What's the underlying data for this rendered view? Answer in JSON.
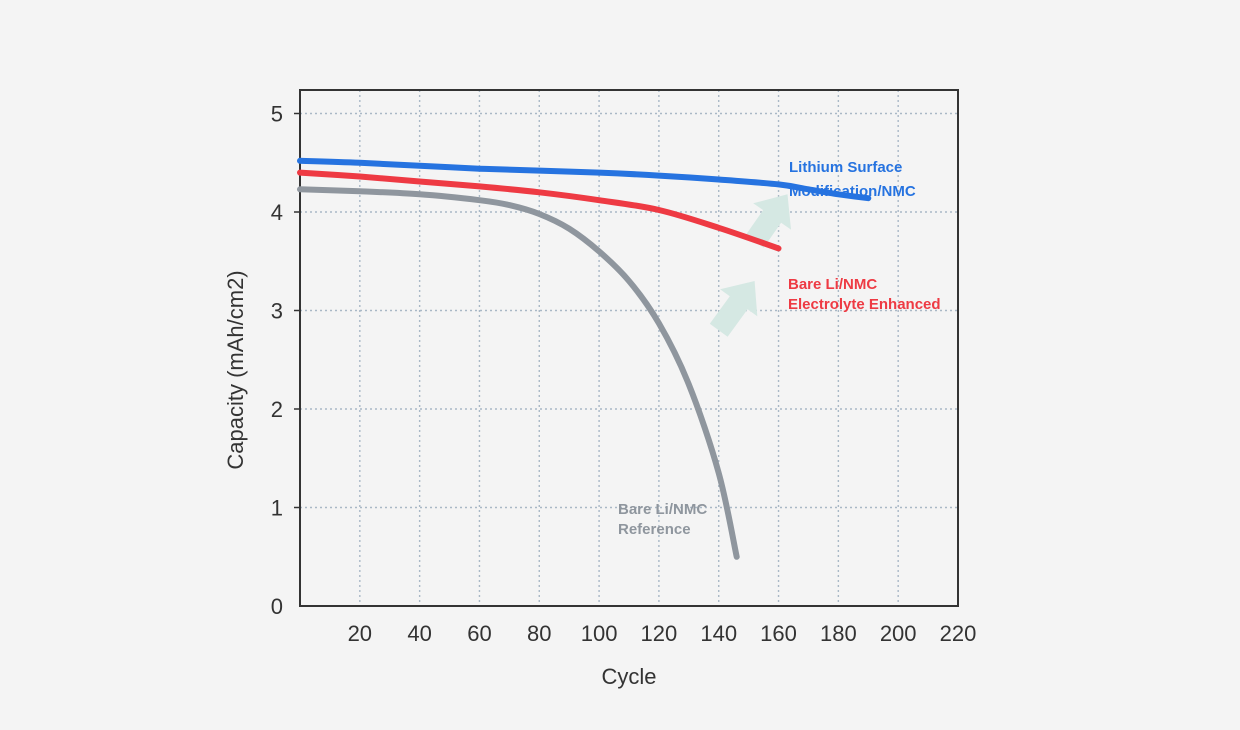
{
  "chart_data": {
    "type": "line",
    "title": "",
    "xlabel": "Cycle",
    "ylabel": "Capacity (mAh/cm2)",
    "xlim": [
      0,
      220
    ],
    "ylim": [
      0,
      5.5
    ],
    "x_ticks": [
      20,
      40,
      60,
      80,
      100,
      120,
      140,
      160,
      180,
      200,
      220
    ],
    "y_ticks": [
      0,
      1,
      2,
      3,
      4,
      5
    ],
    "grid": true,
    "grid_style": "dotted",
    "legend": "inline labels",
    "series": [
      {
        "name": "Lithium Surface Modification/NMC",
        "label_lines": [
          "Lithium Surface",
          "Modification/NMC"
        ],
        "color": "#2673e0",
        "x": [
          0,
          20,
          40,
          60,
          80,
          100,
          120,
          140,
          160,
          170,
          180,
          190
        ],
        "y": [
          4.52,
          4.5,
          4.47,
          4.44,
          4.42,
          4.4,
          4.37,
          4.33,
          4.28,
          4.23,
          4.18,
          4.14
        ]
      },
      {
        "name": "Bare Li/NMC Electrolyte Enhanced",
        "label_lines": [
          "Bare Li/NMC",
          "Electrolyte Enhanced"
        ],
        "color": "#ee3a43",
        "x": [
          0,
          20,
          40,
          60,
          80,
          100,
          120,
          140,
          160
        ],
        "y": [
          4.4,
          4.36,
          4.31,
          4.26,
          4.2,
          4.12,
          4.02,
          3.84,
          3.63
        ]
      },
      {
        "name": "Bare Li/NMC Reference",
        "label_lines": [
          "Bare Li/NMC",
          "Reference"
        ],
        "color": "#8f969e",
        "x": [
          0,
          20,
          40,
          60,
          70,
          80,
          90,
          100,
          110,
          120,
          130,
          140,
          146
        ],
        "y": [
          4.23,
          4.21,
          4.18,
          4.12,
          4.07,
          3.98,
          3.83,
          3.6,
          3.3,
          2.87,
          2.25,
          1.35,
          0.5
        ]
      }
    ],
    "annotations": [
      {
        "type": "arrow",
        "color": "#d5e8e3",
        "from": [
          140,
          2.8
        ],
        "to": [
          152,
          3.3
        ]
      },
      {
        "type": "arrow",
        "color": "#d5e8e3",
        "from": [
          152,
          3.7
        ],
        "to": [
          163,
          4.18
        ]
      }
    ]
  }
}
